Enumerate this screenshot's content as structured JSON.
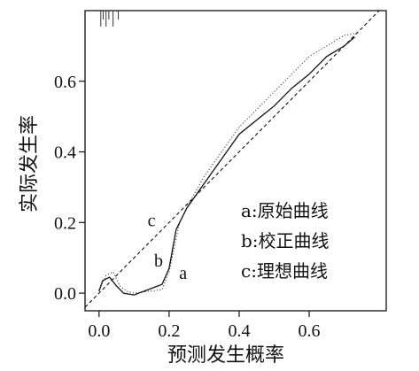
{
  "chart_data": {
    "type": "line",
    "title": "",
    "xlabel": "预测发生概率",
    "ylabel": "实际发生率",
    "xlim": [
      -0.04,
      0.82
    ],
    "ylim": [
      -0.05,
      0.8
    ],
    "x_ticks": [
      0.0,
      0.2,
      0.4,
      0.6
    ],
    "x_tick_labels": [
      "0.0",
      "0.2",
      "0.4",
      "0.6"
    ],
    "y_ticks": [
      0.0,
      0.2,
      0.4,
      0.6
    ],
    "y_tick_labels": [
      "0.0",
      "0.2",
      "0.4",
      "0.6"
    ],
    "grid": false,
    "legend_position": "bottom-right",
    "legend": [
      {
        "key": "a",
        "text": "a:原始曲线"
      },
      {
        "key": "b",
        "text": "b:校正曲线"
      },
      {
        "key": "c",
        "text": "c:理想曲线"
      }
    ],
    "curve_labels": [
      {
        "text": "a",
        "x": 0.24,
        "y": 0.04
      },
      {
        "text": "b",
        "x": 0.17,
        "y": 0.075
      },
      {
        "text": "c",
        "x": 0.15,
        "y": 0.19
      }
    ],
    "series": [
      {
        "key": "a",
        "style": "dotted",
        "x": [
          0.0,
          0.02,
          0.04,
          0.06,
          0.08,
          0.1,
          0.14,
          0.18,
          0.2,
          0.23,
          0.26,
          0.3,
          0.35,
          0.4,
          0.45,
          0.5,
          0.55,
          0.6,
          0.65,
          0.7,
          0.73
        ],
        "y": [
          0.01,
          0.05,
          0.06,
          0.02,
          0.005,
          0.0,
          0.005,
          0.01,
          0.06,
          0.2,
          0.26,
          0.33,
          0.4,
          0.47,
          0.52,
          0.57,
          0.62,
          0.67,
          0.7,
          0.73,
          0.735
        ]
      },
      {
        "key": "b",
        "style": "solid",
        "x": [
          0.0,
          0.01,
          0.03,
          0.05,
          0.07,
          0.1,
          0.14,
          0.18,
          0.2,
          0.22,
          0.25,
          0.3,
          0.35,
          0.4,
          0.45,
          0.5,
          0.55,
          0.6,
          0.65,
          0.7,
          0.73
        ],
        "y": [
          0.005,
          0.035,
          0.045,
          0.02,
          0.0,
          -0.005,
          0.01,
          0.025,
          0.07,
          0.18,
          0.24,
          0.31,
          0.38,
          0.45,
          0.49,
          0.53,
          0.58,
          0.62,
          0.67,
          0.7,
          0.725
        ]
      },
      {
        "key": "c",
        "style": "dashed",
        "x": [
          -0.04,
          0.82
        ],
        "y": [
          -0.04,
          0.82
        ]
      }
    ]
  }
}
